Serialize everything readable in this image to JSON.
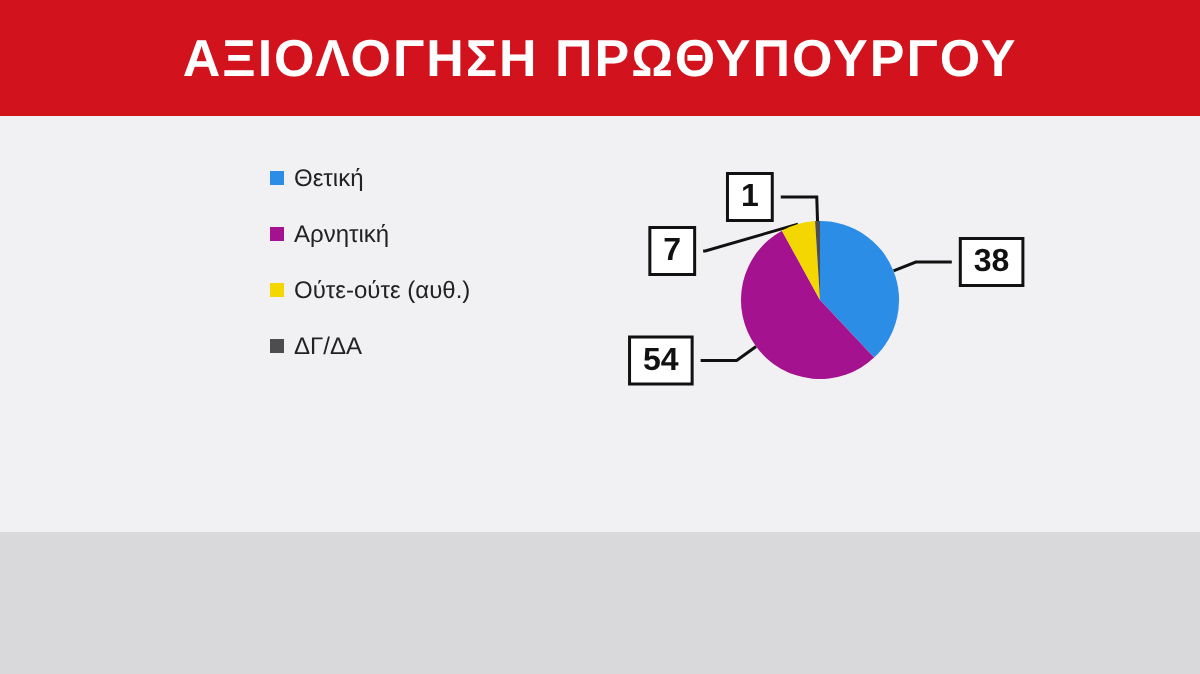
{
  "chart_data": {
    "type": "pie",
    "title": "ΑΞΙΟΛΟΓΗΣΗ ΠΡΩΘΥΠΟΥΡΓΟΥ",
    "categories": [
      "Θετική",
      "Αρνητική",
      "Ούτε-ούτε (αυθ.)",
      "ΔΓ/ΔΑ"
    ],
    "values": [
      38,
      54,
      7,
      1
    ],
    "colors": [
      "#2b8de6",
      "#a5128f",
      "#f4d600",
      "#4d4d4f"
    ],
    "data_labels": true,
    "legend": "top left"
  }
}
